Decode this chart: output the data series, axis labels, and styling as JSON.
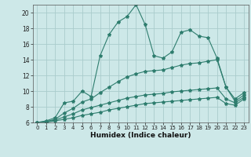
{
  "title": "",
  "xlabel": "Humidex (Indice chaleur)",
  "bg_color": "#cde8e8",
  "line_color": "#2e7d6e",
  "grid_color": "#aacccc",
  "xlim": [
    -0.5,
    23.5
  ],
  "ylim": [
    6,
    21
  ],
  "yticks": [
    6,
    8,
    10,
    12,
    14,
    16,
    18,
    20
  ],
  "xticks": [
    0,
    1,
    2,
    3,
    4,
    5,
    6,
    7,
    8,
    9,
    10,
    11,
    12,
    13,
    14,
    15,
    16,
    17,
    18,
    19,
    20,
    21,
    22,
    23
  ],
  "series": {
    "line1_x": [
      0,
      1,
      2,
      3,
      4,
      5,
      6,
      7,
      8,
      9,
      10,
      11,
      12,
      13,
      14,
      15,
      16,
      17,
      18,
      19,
      20,
      21,
      22,
      23
    ],
    "line1_y": [
      6.0,
      6.2,
      6.6,
      8.5,
      8.7,
      10.0,
      9.3,
      14.5,
      17.2,
      18.8,
      19.5,
      21.0,
      18.5,
      14.5,
      14.2,
      15.0,
      17.5,
      17.8,
      17.0,
      16.8,
      14.2,
      10.5,
      8.7,
      9.5
    ],
    "line2_x": [
      0,
      1,
      2,
      3,
      4,
      5,
      6,
      7,
      8,
      9,
      10,
      11,
      12,
      13,
      14,
      15,
      16,
      17,
      18,
      19,
      20,
      21,
      22,
      23
    ],
    "line2_y": [
      6.0,
      6.1,
      6.4,
      7.2,
      7.8,
      8.6,
      9.0,
      9.8,
      10.5,
      11.2,
      11.8,
      12.2,
      12.5,
      12.6,
      12.7,
      13.0,
      13.3,
      13.5,
      13.6,
      13.8,
      14.0,
      10.5,
      9.0,
      9.8
    ],
    "line3_x": [
      0,
      1,
      2,
      3,
      4,
      5,
      6,
      7,
      8,
      9,
      10,
      11,
      12,
      13,
      14,
      15,
      16,
      17,
      18,
      19,
      20,
      21,
      22,
      23
    ],
    "line3_y": [
      6.0,
      6.1,
      6.3,
      6.7,
      7.1,
      7.6,
      7.9,
      8.2,
      8.5,
      8.8,
      9.1,
      9.3,
      9.5,
      9.6,
      9.7,
      9.9,
      10.0,
      10.1,
      10.2,
      10.3,
      10.4,
      9.0,
      8.5,
      9.2
    ],
    "line4_x": [
      0,
      1,
      2,
      3,
      4,
      5,
      6,
      7,
      8,
      9,
      10,
      11,
      12,
      13,
      14,
      15,
      16,
      17,
      18,
      19,
      20,
      21,
      22,
      23
    ],
    "line4_y": [
      6.0,
      6.05,
      6.2,
      6.4,
      6.6,
      6.9,
      7.1,
      7.3,
      7.6,
      7.8,
      8.0,
      8.2,
      8.4,
      8.5,
      8.6,
      8.7,
      8.8,
      8.9,
      9.0,
      9.1,
      9.2,
      8.4,
      8.2,
      9.0
    ]
  }
}
